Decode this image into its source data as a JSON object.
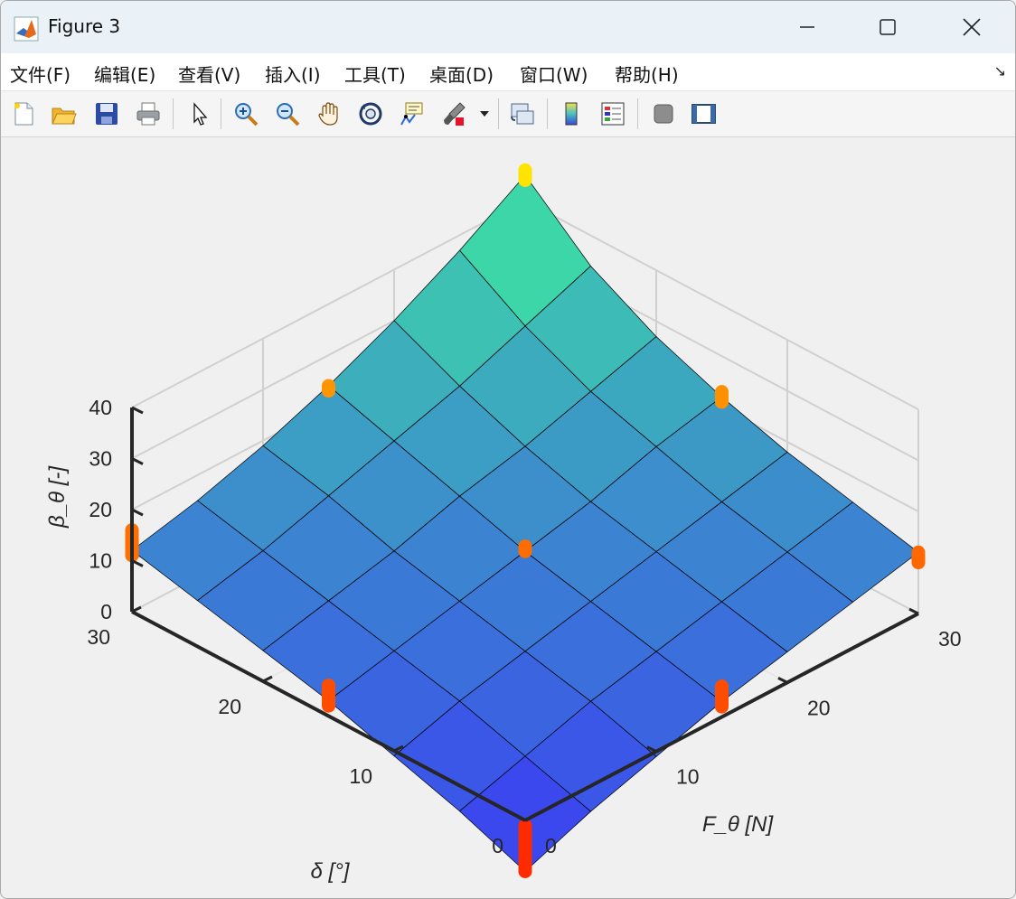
{
  "window": {
    "title": "Figure 3",
    "controls": [
      "minimize",
      "maximize",
      "close"
    ]
  },
  "menu": {
    "items": [
      "文件(F)",
      "编辑(E)",
      "查看(V)",
      "插入(I)",
      "工具(T)",
      "桌面(D)",
      "窗口(W)",
      "帮助(H)"
    ],
    "arrow": "↘"
  },
  "toolbar": {
    "icons": [
      "new-figure-icon",
      "open-file-icon",
      "save-icon",
      "print-icon",
      "pointer-icon",
      "zoom-in-icon",
      "zoom-out-icon",
      "pan-hand-icon",
      "rotate-3d-icon",
      "data-cursor-icon",
      "brush-icon",
      "brush-dropdown-icon",
      "link-plot-icon",
      "colorbar-icon",
      "legend-icon",
      "hide-plot-tools-icon",
      "show-plot-tools-icon"
    ]
  },
  "chart_data": {
    "type": "surface",
    "title": "",
    "xlabel": "δ  [°]",
    "ylabel": "F_θ  [N]",
    "zlabel": "β_θ  [-]",
    "xlim": [
      0,
      30
    ],
    "ylim": [
      0,
      30
    ],
    "zlim": [
      0,
      40
    ],
    "x_ticks": [
      "0",
      "10",
      "20",
      "30"
    ],
    "y_ticks": [
      "0",
      "10",
      "20",
      "30"
    ],
    "z_ticks": [
      "0",
      "10",
      "20",
      "30",
      "40"
    ],
    "grid": true,
    "colormap": "winter-like blue to green",
    "colors": {
      "surface_low": "#3a38f6",
      "surface_high": "#3ef49a",
      "marker_low": "#ff1a00",
      "marker_high": "#ffe400"
    },
    "surface_grid": {
      "delta": [
        0,
        5,
        10,
        15,
        20,
        25,
        30
      ],
      "F": [
        0,
        5,
        10,
        15,
        20,
        25,
        30
      ],
      "beta": [
        [
          -10,
          -5,
          -1,
          3,
          6,
          9,
          12
        ],
        [
          -5,
          -1,
          3,
          6,
          9,
          12,
          15
        ],
        [
          -1,
          3,
          6,
          9,
          12,
          15,
          18
        ],
        [
          3,
          6,
          9,
          12,
          15,
          19,
          22
        ],
        [
          6,
          9,
          12,
          16,
          19,
          23,
          27
        ],
        [
          9,
          12,
          16,
          20,
          24,
          29,
          34
        ],
        [
          12,
          15,
          19,
          24,
          30,
          37,
          45
        ]
      ]
    },
    "markers": [
      {
        "delta": 0,
        "F": 0,
        "beta": [
          -10,
          -1
        ]
      },
      {
        "delta": 0,
        "F": 15,
        "beta": [
          2,
          6
        ]
      },
      {
        "delta": 0,
        "F": 30,
        "beta": [
          10,
          12
        ]
      },
      {
        "delta": 15,
        "F": 0,
        "beta": [
          2,
          6
        ]
      },
      {
        "delta": 15,
        "F": 15,
        "beta": [
          12,
          13
        ]
      },
      {
        "delta": 15,
        "F": 30,
        "beta": [
          21,
          23
        ]
      },
      {
        "delta": 30,
        "F": 0,
        "beta": [
          11,
          16
        ]
      },
      {
        "delta": 30,
        "F": 15,
        "beta": [
          23,
          24
        ]
      },
      {
        "delta": 30,
        "F": 30,
        "beta": [
          44,
          46
        ]
      }
    ]
  }
}
